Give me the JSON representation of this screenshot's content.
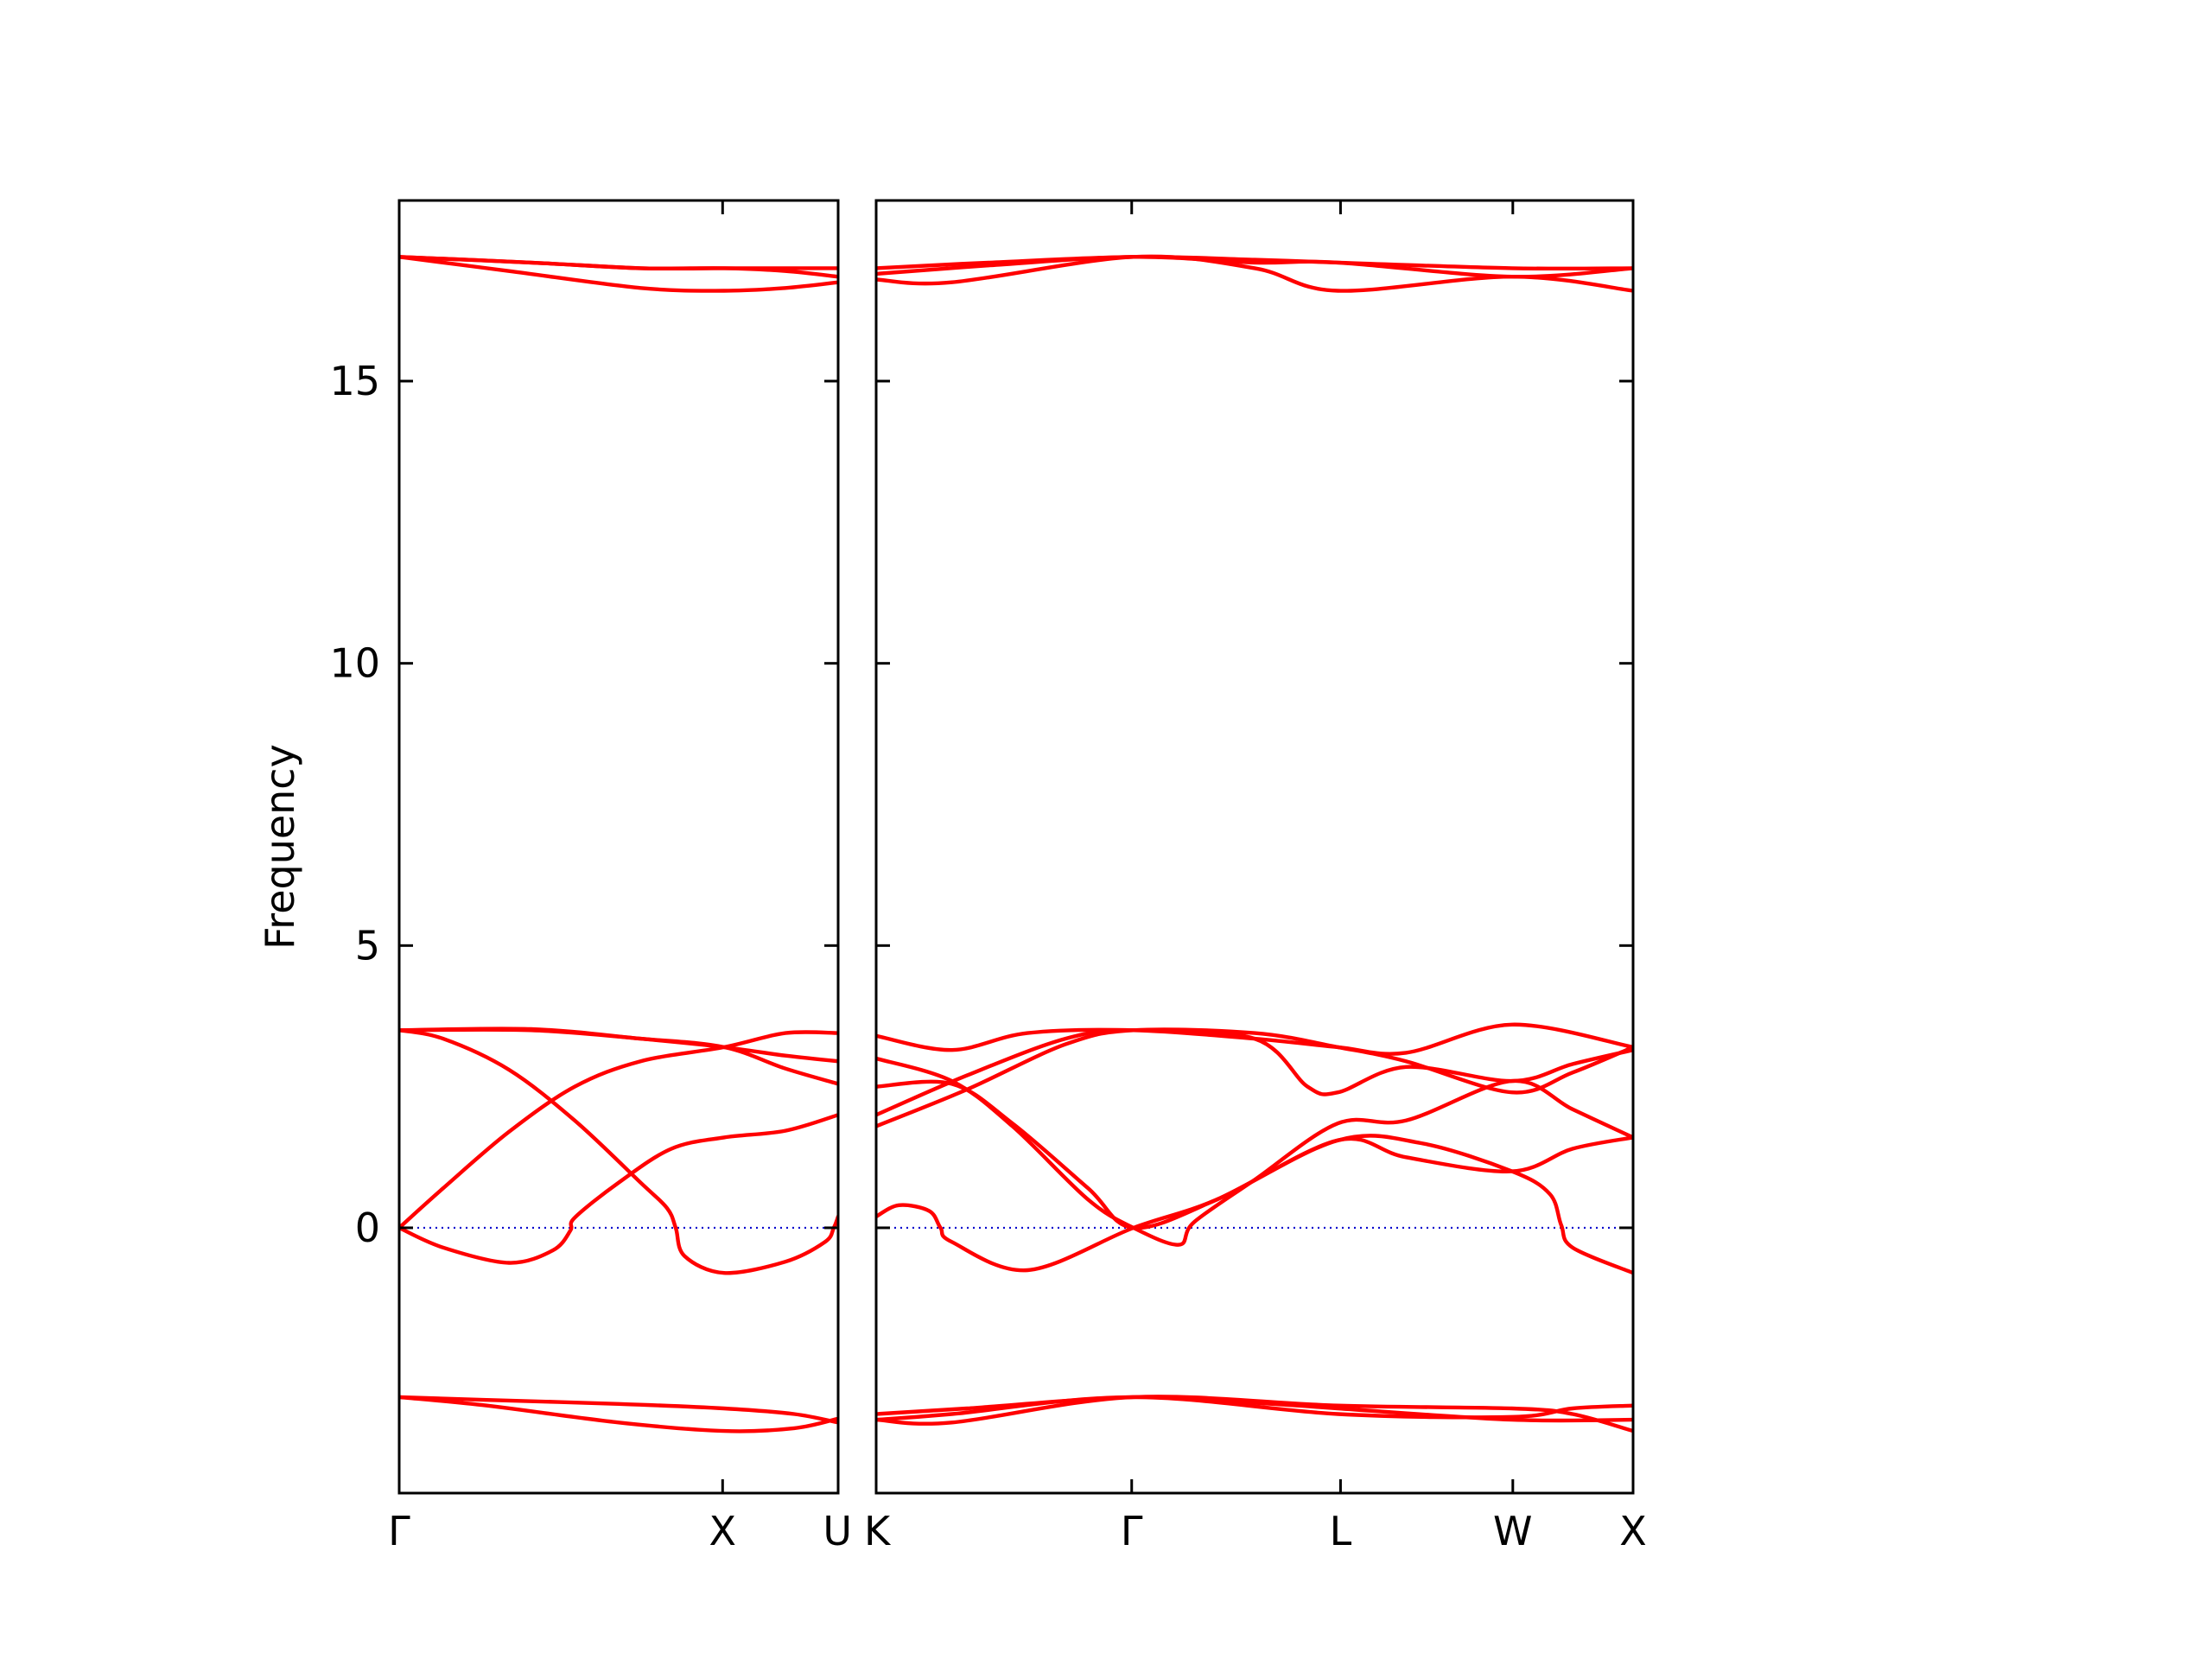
{
  "chart_data": {
    "type": "line",
    "ylabel": "Frequency",
    "xlabel": "",
    "ylim": [
      -4.7,
      18.2
    ],
    "yticks": [
      0,
      5,
      10,
      15
    ],
    "ytick_labels": [
      "0",
      "5",
      "10",
      "15"
    ],
    "grid": false,
    "legend": "none",
    "colors": {
      "bands": "#ff0000",
      "zero_line": "#0000cc",
      "axes": "#000000"
    },
    "panels": [
      {
        "name": "Γ-X-U",
        "x_range": [
          0,
          1.0
        ],
        "kpoints": [
          {
            "label": "Γ",
            "x": 0.0
          },
          {
            "label": "X",
            "x": 0.7368
          },
          {
            "label": "U",
            "x": 1.0
          }
        ],
        "bands": [
          {
            "name": "band-1",
            "points": [
              [
                0,
                -3.0
              ],
              [
                0.2,
                -3.05
              ],
              [
                0.5,
                -3.12
              ],
              [
                0.74,
                -3.2
              ],
              [
                0.9,
                -3.3
              ],
              [
                1.0,
                -3.45
              ]
            ]
          },
          {
            "name": "band-2",
            "points": [
              [
                0,
                -3.0
              ],
              [
                0.2,
                -3.15
              ],
              [
                0.5,
                -3.45
              ],
              [
                0.74,
                -3.6
              ],
              [
                0.9,
                -3.55
              ],
              [
                1.0,
                -3.38
              ]
            ]
          },
          {
            "name": "band-3",
            "points": [
              [
                0,
                0.0
              ],
              [
                0.1,
                -0.35
              ],
              [
                0.25,
                -0.62
              ],
              [
                0.35,
                -0.4
              ],
              [
                0.39,
                -0.05
              ],
              [
                0.4,
                0.18
              ],
              [
                0.5,
                0.8
              ],
              [
                0.62,
                1.4
              ],
              [
                0.74,
                1.6
              ],
              [
                0.88,
                1.72
              ],
              [
                1.0,
                2.0
              ]
            ]
          },
          {
            "name": "band-4",
            "points": [
              [
                0,
                0.0
              ],
              [
                0.1,
                0.7
              ],
              [
                0.25,
                1.7
              ],
              [
                0.4,
                2.5
              ],
              [
                0.55,
                2.95
              ],
              [
                0.74,
                3.2
              ],
              [
                0.88,
                3.45
              ],
              [
                1.0,
                3.45
              ]
            ]
          },
          {
            "name": "band-5",
            "points": [
              [
                0,
                3.5
              ],
              [
                0.1,
                3.35
              ],
              [
                0.25,
                2.8
              ],
              [
                0.4,
                1.9
              ],
              [
                0.55,
                0.8
              ],
              [
                0.61,
                0.35
              ],
              [
                0.63,
                0.0
              ],
              [
                0.65,
                -0.5
              ],
              [
                0.74,
                -0.8
              ],
              [
                0.88,
                -0.6
              ],
              [
                0.97,
                -0.25
              ],
              [
                0.99,
                0.0
              ],
              [
                1.0,
                0.2
              ]
            ]
          },
          {
            "name": "band-6",
            "points": [
              [
                0,
                3.5
              ],
              [
                0.3,
                3.52
              ],
              [
                0.55,
                3.35
              ],
              [
                0.74,
                3.2
              ],
              [
                0.88,
                3.05
              ],
              [
                1.0,
                2.95
              ]
            ]
          },
          {
            "name": "band-7",
            "points": [
              [
                0,
                3.5
              ],
              [
                0.3,
                3.5
              ],
              [
                0.55,
                3.35
              ],
              [
                0.74,
                3.2
              ],
              [
                0.88,
                2.82
              ],
              [
                1.0,
                2.55
              ]
            ]
          },
          {
            "name": "band-8",
            "points": [
              [
                0,
                17.2
              ],
              [
                0.3,
                17.1
              ],
              [
                0.55,
                17.0
              ],
              [
                0.74,
                17.0
              ],
              [
                0.88,
                16.95
              ],
              [
                1.0,
                16.85
              ]
            ]
          },
          {
            "name": "band-9",
            "points": [
              [
                0,
                17.2
              ],
              [
                0.3,
                17.1
              ],
              [
                0.55,
                17.0
              ],
              [
                0.74,
                17.0
              ],
              [
                0.88,
                17.0
              ],
              [
                1.0,
                17.0
              ]
            ]
          },
          {
            "name": "band-10",
            "points": [
              [
                0,
                17.2
              ],
              [
                0.25,
                16.95
              ],
              [
                0.55,
                16.65
              ],
              [
                0.74,
                16.6
              ],
              [
                0.88,
                16.65
              ],
              [
                1.0,
                16.75
              ]
            ]
          }
        ]
      },
      {
        "name": "K-Γ-L-W-X",
        "x_range": [
          0,
          1.0
        ],
        "kpoints": [
          {
            "label": "K",
            "x": 0.0
          },
          {
            "label": "Γ",
            "x": 0.3376
          },
          {
            "label": "L",
            "x": 0.6135
          },
          {
            "label": "W",
            "x": 0.8411
          },
          {
            "label": "X",
            "x": 1.0
          }
        ],
        "bands": [
          {
            "name": "band-1",
            "points": [
              [
                0,
                -3.4
              ],
              [
                0.1,
                -3.45
              ],
              [
                0.34,
                -3.0
              ],
              [
                0.61,
                -3.15
              ],
              [
                0.84,
                -3.2
              ],
              [
                0.92,
                -3.3
              ],
              [
                1.0,
                -3.6
              ]
            ]
          },
          {
            "name": "band-2",
            "points": [
              [
                0,
                -3.4
              ],
              [
                0.1,
                -3.3
              ],
              [
                0.34,
                -3.0
              ],
              [
                0.61,
                -3.3
              ],
              [
                0.84,
                -3.35
              ],
              [
                0.92,
                -3.2
              ],
              [
                1.0,
                -3.15
              ]
            ]
          },
          {
            "name": "band-3",
            "points": [
              [
                0,
                -3.3
              ],
              [
                0.12,
                -3.2
              ],
              [
                0.34,
                -3.0
              ],
              [
                0.5,
                -3.1
              ],
              [
                0.61,
                -3.2
              ],
              [
                0.84,
                -3.4
              ],
              [
                1.0,
                -3.4
              ]
            ]
          },
          {
            "name": "band-4",
            "points": [
              [
                0,
                0.2
              ],
              [
                0.03,
                0.4
              ],
              [
                0.07,
                0.3
              ],
              [
                0.085,
                0.0
              ],
              [
                0.1,
                -0.25
              ],
              [
                0.2,
                -0.75
              ],
              [
                0.34,
                0.0
              ],
              [
                0.45,
                0.5
              ],
              [
                0.61,
                1.55
              ],
              [
                0.72,
                1.5
              ],
              [
                0.84,
                1.0
              ],
              [
                0.89,
                0.6
              ],
              [
                0.905,
                0.05
              ],
              [
                0.92,
                -0.35
              ],
              [
                1.0,
                -0.8
              ]
            ]
          },
          {
            "name": "band-5",
            "points": [
              [
                0,
                1.8
              ],
              [
                0.12,
                2.45
              ],
              [
                0.25,
                3.25
              ],
              [
                0.34,
                3.5
              ],
              [
                0.5,
                3.45
              ],
              [
                0.61,
                3.2
              ],
              [
                0.7,
                2.95
              ],
              [
                0.84,
                2.4
              ],
              [
                0.92,
                2.75
              ],
              [
                1.0,
                3.2
              ]
            ]
          },
          {
            "name": "band-6",
            "points": [
              [
                0,
                2.0
              ],
              [
                0.12,
                2.7
              ],
              [
                0.25,
                3.35
              ],
              [
                0.34,
                3.5
              ],
              [
                0.5,
                3.35
              ],
              [
                0.57,
                2.5
              ],
              [
                0.61,
                2.4
              ],
              [
                0.7,
                2.85
              ],
              [
                0.84,
                2.6
              ],
              [
                0.92,
                2.9
              ],
              [
                1.0,
                3.15
              ]
            ]
          },
          {
            "name": "band-7",
            "points": [
              [
                0,
                3.4
              ],
              [
                0.1,
                3.15
              ],
              [
                0.2,
                3.45
              ],
              [
                0.34,
                3.5
              ],
              [
                0.5,
                3.35
              ],
              [
                0.61,
                3.2
              ],
              [
                0.7,
                3.1
              ],
              [
                0.84,
                3.6
              ],
              [
                1.0,
                3.2
              ]
            ]
          },
          {
            "name": "band-8",
            "points": [
              [
                0,
                3.0
              ],
              [
                0.1,
                2.6
              ],
              [
                0.18,
                1.8
              ],
              [
                0.28,
                0.5
              ],
              [
                0.34,
                0.0
              ],
              [
                0.4,
                -0.3
              ],
              [
                0.42,
                0.1
              ],
              [
                0.5,
                0.85
              ],
              [
                0.61,
                1.85
              ],
              [
                0.7,
                1.9
              ],
              [
                0.84,
                2.6
              ],
              [
                0.92,
                2.1
              ],
              [
                1.0,
                1.6
              ]
            ]
          },
          {
            "name": "band-9",
            "points": [
              [
                0,
                2.5
              ],
              [
                0.1,
                2.55
              ],
              [
                0.18,
                1.85
              ],
              [
                0.28,
                0.7
              ],
              [
                0.34,
                0.0
              ],
              [
                0.45,
                0.5
              ],
              [
                0.61,
                1.55
              ],
              [
                0.7,
                1.25
              ],
              [
                0.84,
                1.0
              ],
              [
                0.92,
                1.4
              ],
              [
                1.0,
                1.6
              ]
            ]
          },
          {
            "name": "band-10",
            "points": [
              [
                0,
                16.8
              ],
              [
                0.1,
                16.75
              ],
              [
                0.34,
                17.2
              ],
              [
                0.5,
                17.0
              ],
              [
                0.61,
                16.6
              ],
              [
                0.84,
                16.85
              ],
              [
                1.0,
                16.6
              ]
            ]
          },
          {
            "name": "band-11",
            "points": [
              [
                0,
                16.9
              ],
              [
                0.15,
                17.05
              ],
              [
                0.34,
                17.2
              ],
              [
                0.5,
                17.1
              ],
              [
                0.61,
                17.1
              ],
              [
                0.84,
                16.85
              ],
              [
                1.0,
                17.0
              ]
            ]
          },
          {
            "name": "band-12",
            "points": [
              [
                0,
                17.0
              ],
              [
                0.15,
                17.1
              ],
              [
                0.34,
                17.2
              ],
              [
                0.5,
                17.15
              ],
              [
                0.61,
                17.1
              ],
              [
                0.84,
                17.0
              ],
              [
                1.0,
                17.0
              ]
            ]
          }
        ]
      }
    ]
  }
}
